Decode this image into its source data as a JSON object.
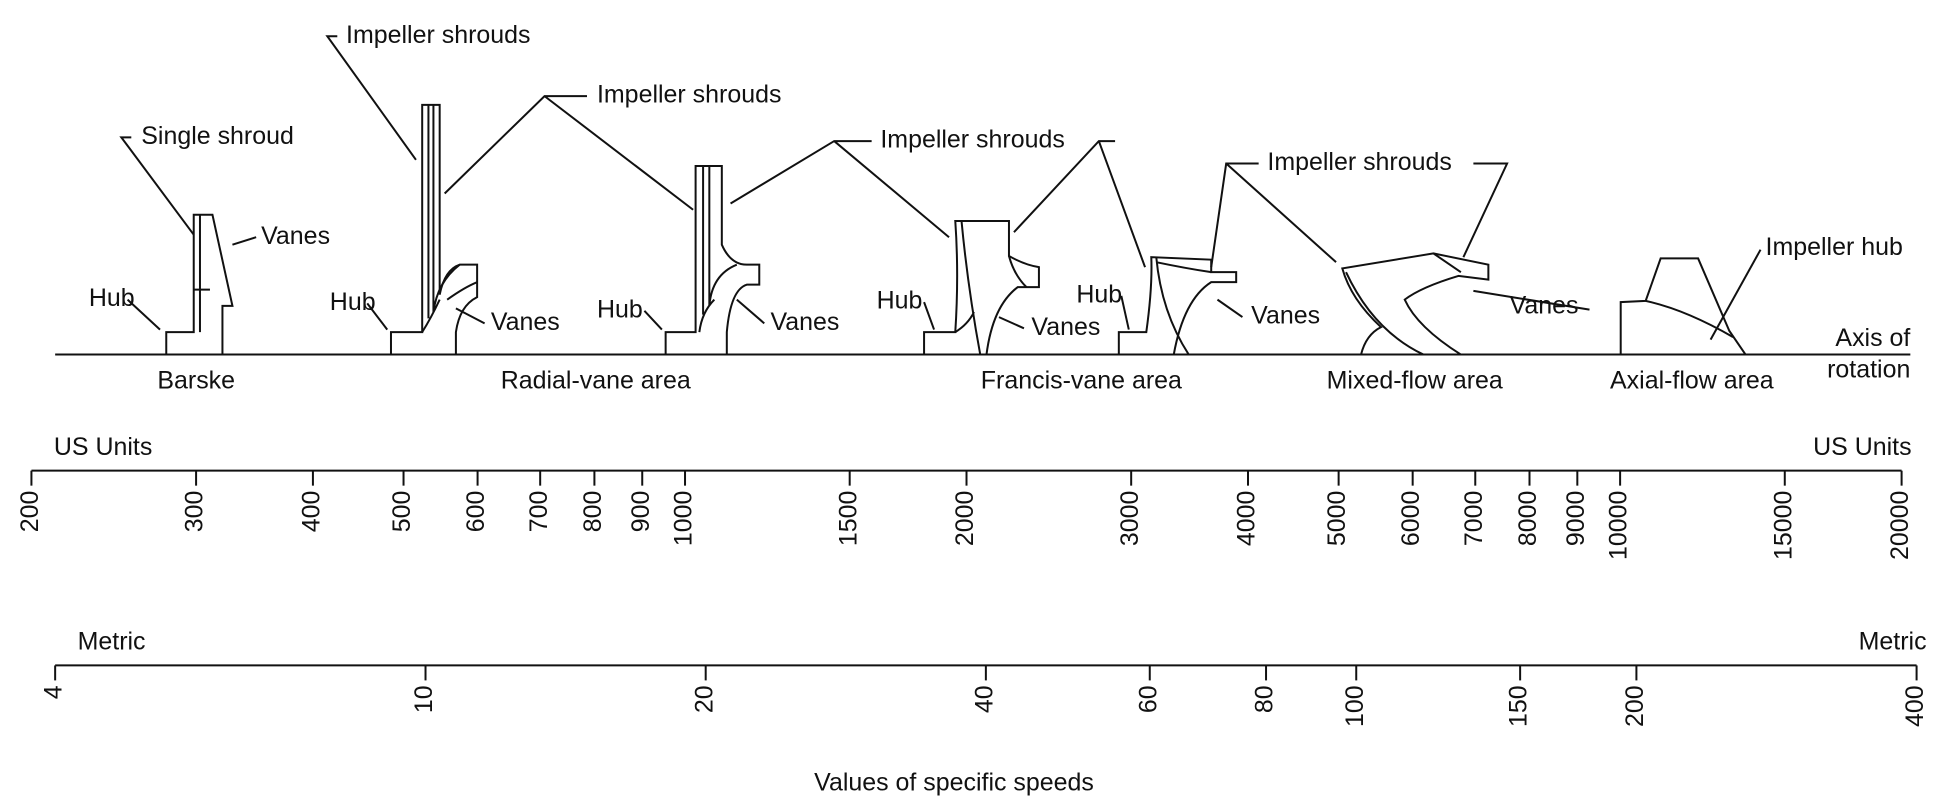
{
  "labels": [
    "Impeller shrouds",
    "Single shroud",
    "Impeller shrouds",
    "Impeller shrouds",
    "Impeller shrouds",
    "Vanes",
    "Impeller hub",
    "Hub",
    "Hub",
    "Vanes",
    "Hub",
    "Vanes",
    "Hub",
    "Vanes",
    "Hub",
    "Vanes",
    "Vanes"
  ],
  "areas": [
    "Barske",
    "Radial-vane area",
    "Francis-vane area",
    "Mixed-flow area",
    "Axial-flow area"
  ],
  "axis_label": [
    "Axis of",
    "rotation"
  ],
  "scales": [
    {
      "name": "US Units",
      "log": true,
      "lim": [
        200,
        20000
      ],
      "ticks": [
        200,
        300,
        400,
        500,
        600,
        700,
        800,
        900,
        1000,
        1500,
        2000,
        3000,
        4000,
        5000,
        6000,
        7000,
        8000,
        9000,
        10000,
        15000,
        20000
      ]
    },
    {
      "name": "Metric",
      "log": true,
      "lim": [
        4,
        400
      ],
      "ticks": [
        4,
        10,
        20,
        40,
        60,
        80,
        100,
        150,
        200,
        400
      ]
    }
  ],
  "xlabel": "Values of specific speeds"
}
